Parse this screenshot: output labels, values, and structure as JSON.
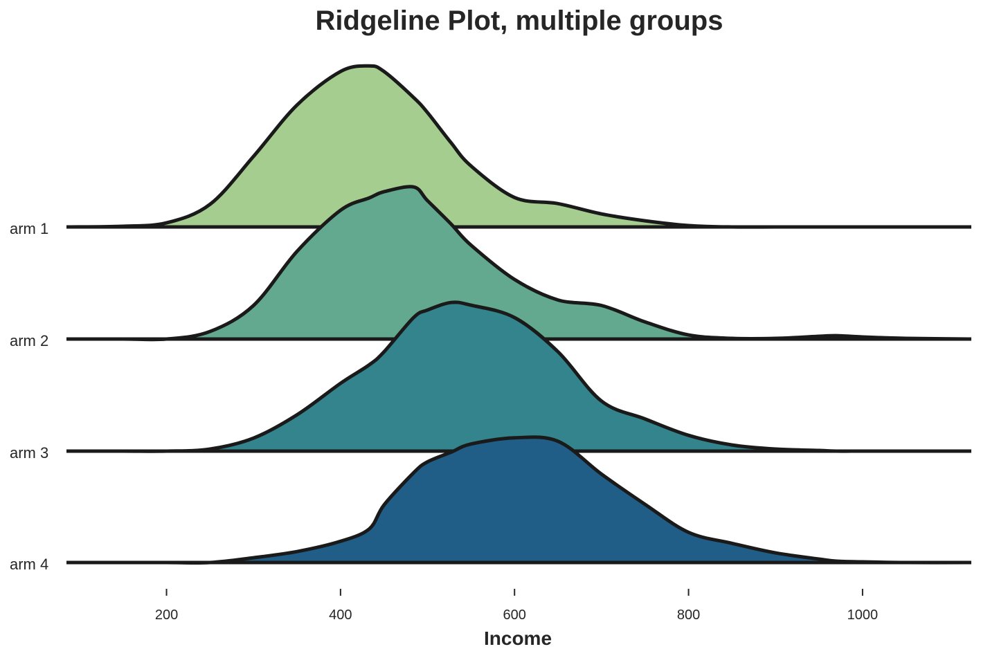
{
  "chart_data": {
    "type": "area",
    "title": "Ridgeline Plot, multiple groups",
    "xlabel": "Income",
    "ylabel": "",
    "xlim": [
      85,
      1125
    ],
    "grid": false,
    "legend": "none",
    "x_ticks": [
      200,
      400,
      600,
      800,
      1000
    ],
    "x_tick_labels": [
      "200",
      "400",
      "600",
      "800",
      "1000"
    ],
    "x": [
      85,
      150,
      200,
      250,
      300,
      350,
      400,
      433,
      450,
      484,
      500,
      527,
      550,
      600,
      650,
      700,
      750,
      800,
      850,
      900,
      950,
      970,
      1000,
      1050,
      1125
    ],
    "series": [
      {
        "name": "arm 1",
        "color": "#a4cd8f",
        "values": [
          0.0,
          0.01,
          0.06,
          0.33,
          1.03,
          1.78,
          2.27,
          2.35,
          2.27,
          1.89,
          1.67,
          1.23,
          0.89,
          0.43,
          0.34,
          0.19,
          0.09,
          0.02,
          0.0,
          0.0,
          0.0,
          0.0,
          0.0,
          0.0,
          0.0
        ]
      },
      {
        "name": "arm 2",
        "color": "#62a98f",
        "values": [
          0.0,
          0.0,
          0.0,
          0.11,
          0.49,
          1.28,
          1.88,
          2.06,
          2.15,
          2.22,
          2.02,
          1.68,
          1.37,
          0.87,
          0.57,
          0.49,
          0.25,
          0.06,
          0.01,
          0.01,
          0.04,
          0.05,
          0.03,
          0.01,
          0.0
        ]
      },
      {
        "name": "arm 3",
        "color": "#33848c",
        "values": [
          0.0,
          0.0,
          0.0,
          0.03,
          0.19,
          0.53,
          0.99,
          1.26,
          1.45,
          1.95,
          2.06,
          2.17,
          2.13,
          1.95,
          1.45,
          0.73,
          0.47,
          0.23,
          0.09,
          0.03,
          0.01,
          0.0,
          0.0,
          0.0,
          0.0
        ]
      },
      {
        "name": "arm 4",
        "color": "#205e88",
        "values": [
          0.0,
          0.0,
          0.0,
          0.0,
          0.07,
          0.16,
          0.31,
          0.49,
          0.84,
          1.31,
          1.47,
          1.61,
          1.73,
          1.82,
          1.77,
          1.29,
          0.85,
          0.44,
          0.28,
          0.14,
          0.05,
          0.02,
          0.01,
          0.0,
          0.0
        ]
      }
    ]
  }
}
